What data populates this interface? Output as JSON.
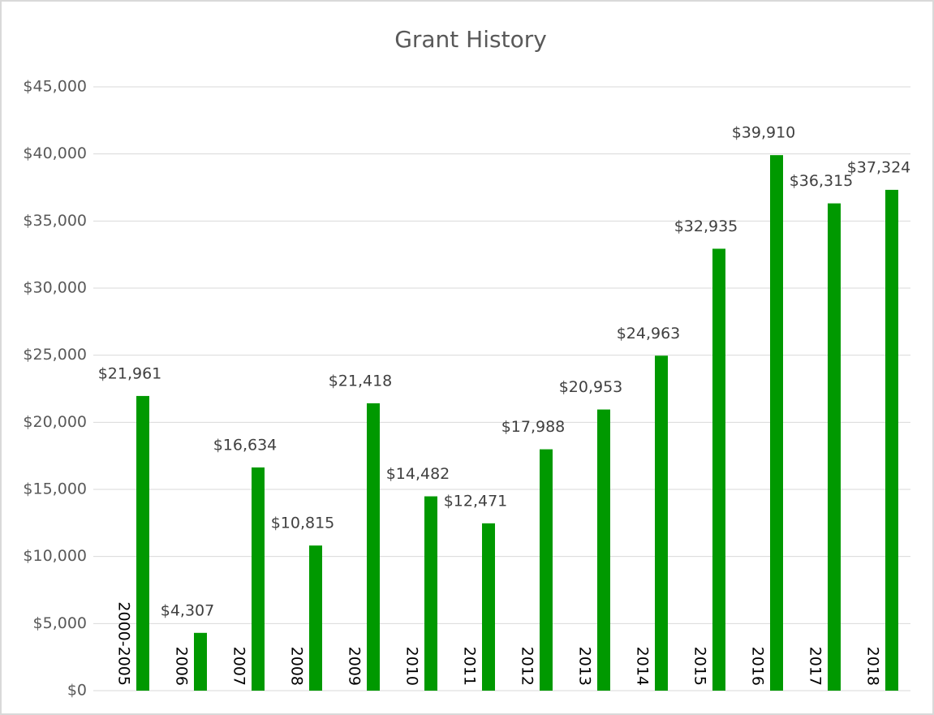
{
  "chart_data": {
    "type": "bar",
    "title": "Grant History",
    "categories": [
      "2000-2005",
      "2006",
      "2007",
      "2008",
      "2009",
      "2010",
      "2011",
      "2012",
      "2013",
      "2014",
      "2015",
      "2016",
      "2017",
      "2018"
    ],
    "values": [
      21961,
      4307,
      16634,
      10815,
      21418,
      14482,
      12471,
      17988,
      20953,
      24963,
      32935,
      39910,
      36315,
      37324
    ],
    "value_labels": [
      "$21,961",
      "$4,307",
      "$16,634",
      "$10,815",
      "$21,418",
      "$14,482",
      "$12,471",
      "$17,988",
      "$20,953",
      "$24,963",
      "$32,935",
      "$39,910",
      "$36,315",
      "$37,324"
    ],
    "color": "#009900",
    "ylim": [
      0,
      45000
    ],
    "yticks": [
      {
        "value": 0,
        "label": "$0"
      },
      {
        "value": 5000,
        "label": "$5,000"
      },
      {
        "value": 10000,
        "label": "$10,000"
      },
      {
        "value": 15000,
        "label": "$15,000"
      },
      {
        "value": 20000,
        "label": "$20,000"
      },
      {
        "value": 25000,
        "label": "$25,000"
      },
      {
        "value": 30000,
        "label": "$30,000"
      },
      {
        "value": 35000,
        "label": "$35,000"
      },
      {
        "value": 40000,
        "label": "$40,000"
      },
      {
        "value": 45000,
        "label": "$45,000"
      }
    ],
    "grid": true
  }
}
